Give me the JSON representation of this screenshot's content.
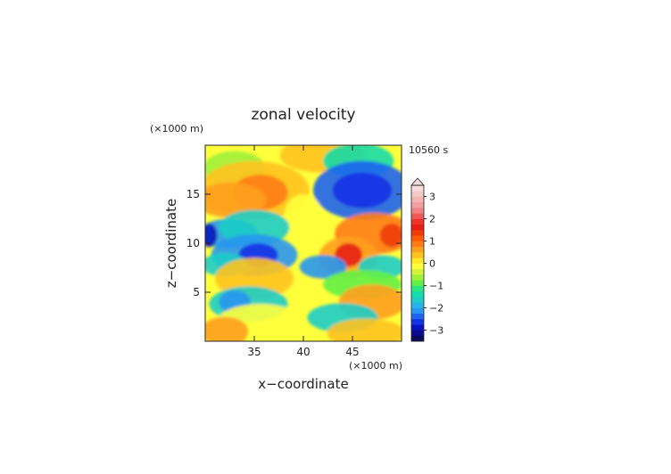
{
  "chart_data": {
    "type": "heatmap",
    "title": "zonal velocity",
    "time_label": "10560 s",
    "xlabel": "x−coordinate",
    "ylabel": "z−coordinate",
    "x_unit": "(×1000 m)",
    "y_unit": "(×1000 m)",
    "xlim": [
      30,
      50
    ],
    "ylim": [
      0,
      20
    ],
    "x_ticks": [
      35,
      40,
      45
    ],
    "y_ticks": [
      5,
      10,
      15
    ],
    "colorbar": {
      "ticks": [
        3,
        2,
        1,
        0,
        -1,
        -2,
        -3
      ],
      "levels": [
        -3.5,
        -3.25,
        -3,
        -2.75,
        -2.5,
        -2.25,
        -2,
        -1.75,
        -1.5,
        -1.25,
        -1,
        -0.75,
        -0.5,
        -0.25,
        0,
        0.25,
        0.5,
        0.75,
        1,
        1.25,
        1.5,
        1.75,
        2,
        2.25,
        2.5,
        2.75,
        3,
        3.25,
        3.5
      ],
      "extend": "max"
    },
    "colors": [
      "#0a0a5a",
      "#0a0a8c",
      "#0a14be",
      "#1432e6",
      "#1e64f0",
      "#2896f0",
      "#28b4e6",
      "#1ecdc8",
      "#14dcaa",
      "#28e682",
      "#64f046",
      "#a0f03c",
      "#d2f53c",
      "#ffff3c",
      "#ffe628",
      "#ffc31e",
      "#ffa01e",
      "#ff7d14",
      "#ff5a0a",
      "#f03c0a",
      "#e61e14",
      "#f03228",
      "#f05a5a",
      "#f08282",
      "#f0a0a0",
      "#f5b4b4",
      "#f5c8c8",
      "#f8dcdc"
    ],
    "grid": false
  }
}
